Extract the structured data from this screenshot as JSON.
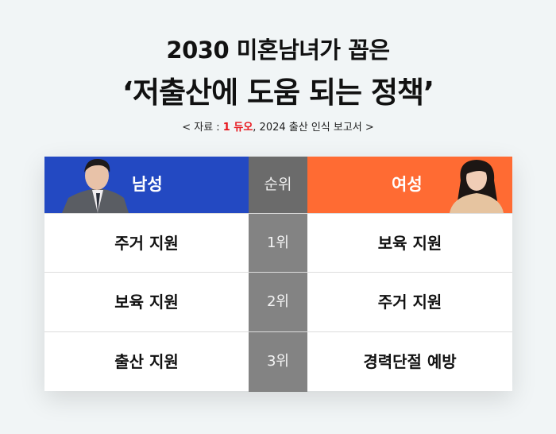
{
  "title_line1": "2030 미혼남녀가 꼽은",
  "title_line2": "‘저출산에 도움 되는 정책’",
  "source": {
    "prefix": "< 자료 : ",
    "logo": "1 듀오",
    "suffix": ", 2024 출산 인식 보고서 >"
  },
  "table": {
    "headers": {
      "male": "남성",
      "rank": "순위",
      "female": "여성"
    },
    "rows": [
      {
        "male": "주거 지원",
        "rank": "1위",
        "female": "보육 지원"
      },
      {
        "male": "보육 지원",
        "rank": "2위",
        "female": "주거 지원"
      },
      {
        "male": "출산 지원",
        "rank": "3위",
        "female": "경력단절 예방"
      }
    ]
  },
  "colors": {
    "male": "#2349c2",
    "female": "#ff6b33",
    "rank_header": "#6b6b6b",
    "rank_cell": "#838383"
  }
}
